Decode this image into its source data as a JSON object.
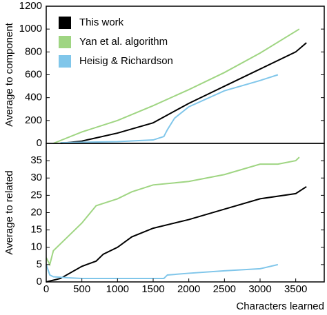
{
  "chart_data": [
    {
      "type": "line",
      "ylabel": "Average to component",
      "xlim": [
        0,
        3900
      ],
      "ylim": [
        0,
        1200
      ],
      "yticks": [
        0,
        200,
        400,
        600,
        800,
        1000,
        1200
      ],
      "legend": "upper left",
      "series": [
        {
          "name": "This work",
          "color": "#000000",
          "x": [
            200,
            500,
            1000,
            1500,
            2000,
            2500,
            3000,
            3500,
            3650
          ],
          "values": [
            0,
            20,
            90,
            180,
            350,
            500,
            650,
            800,
            880
          ]
        },
        {
          "name": "Yan et al. algorithm",
          "color": "#9fd582",
          "x": [
            100,
            500,
            1000,
            1500,
            2000,
            2500,
            3000,
            3550
          ],
          "values": [
            0,
            100,
            200,
            330,
            470,
            620,
            790,
            1000
          ]
        },
        {
          "name": "Heisig & Richardson",
          "color": "#80c6ea",
          "x": [
            200,
            500,
            1000,
            1500,
            1650,
            1700,
            1800,
            2000,
            2500,
            3000,
            3250
          ],
          "values": [
            5,
            10,
            15,
            30,
            60,
            120,
            220,
            320,
            460,
            550,
            600
          ]
        }
      ]
    },
    {
      "type": "line",
      "ylabel": "Average to related",
      "xlabel": "Characters learned",
      "xlim": [
        0,
        3900
      ],
      "xticks": [
        0,
        500,
        1000,
        1500,
        2000,
        2500,
        3000,
        3500
      ],
      "ylim": [
        0,
        40
      ],
      "yticks": [
        0,
        5,
        10,
        15,
        20,
        25,
        30,
        35
      ],
      "series": [
        {
          "color": "#000000",
          "x": [
            0,
            100,
            200,
            500,
            700,
            800,
            1000,
            1200,
            1500,
            1800,
            2000,
            2500,
            3000,
            3500,
            3650
          ],
          "values": [
            0,
            0.5,
            1,
            4.5,
            6,
            8,
            10,
            13,
            15.5,
            17,
            18,
            21,
            24,
            25.5,
            27.5
          ]
        },
        {
          "color": "#9fd582",
          "x": [
            0,
            50,
            100,
            300,
            500,
            700,
            1000,
            1200,
            1500,
            2000,
            2500,
            3000,
            3250,
            3500,
            3550
          ],
          "values": [
            7,
            5,
            9,
            13,
            17,
            22,
            24,
            26,
            28,
            29,
            31,
            34,
            34,
            35,
            36
          ]
        },
        {
          "color": "#80c6ea",
          "x": [
            0,
            50,
            100,
            300,
            500,
            1000,
            1500,
            1650,
            1700,
            2000,
            2500,
            3000,
            3250
          ],
          "values": [
            5,
            2,
            1.5,
            1.2,
            1,
            1,
            1,
            1,
            2,
            2.5,
            3.2,
            3.8,
            5
          ]
        }
      ]
    }
  ]
}
